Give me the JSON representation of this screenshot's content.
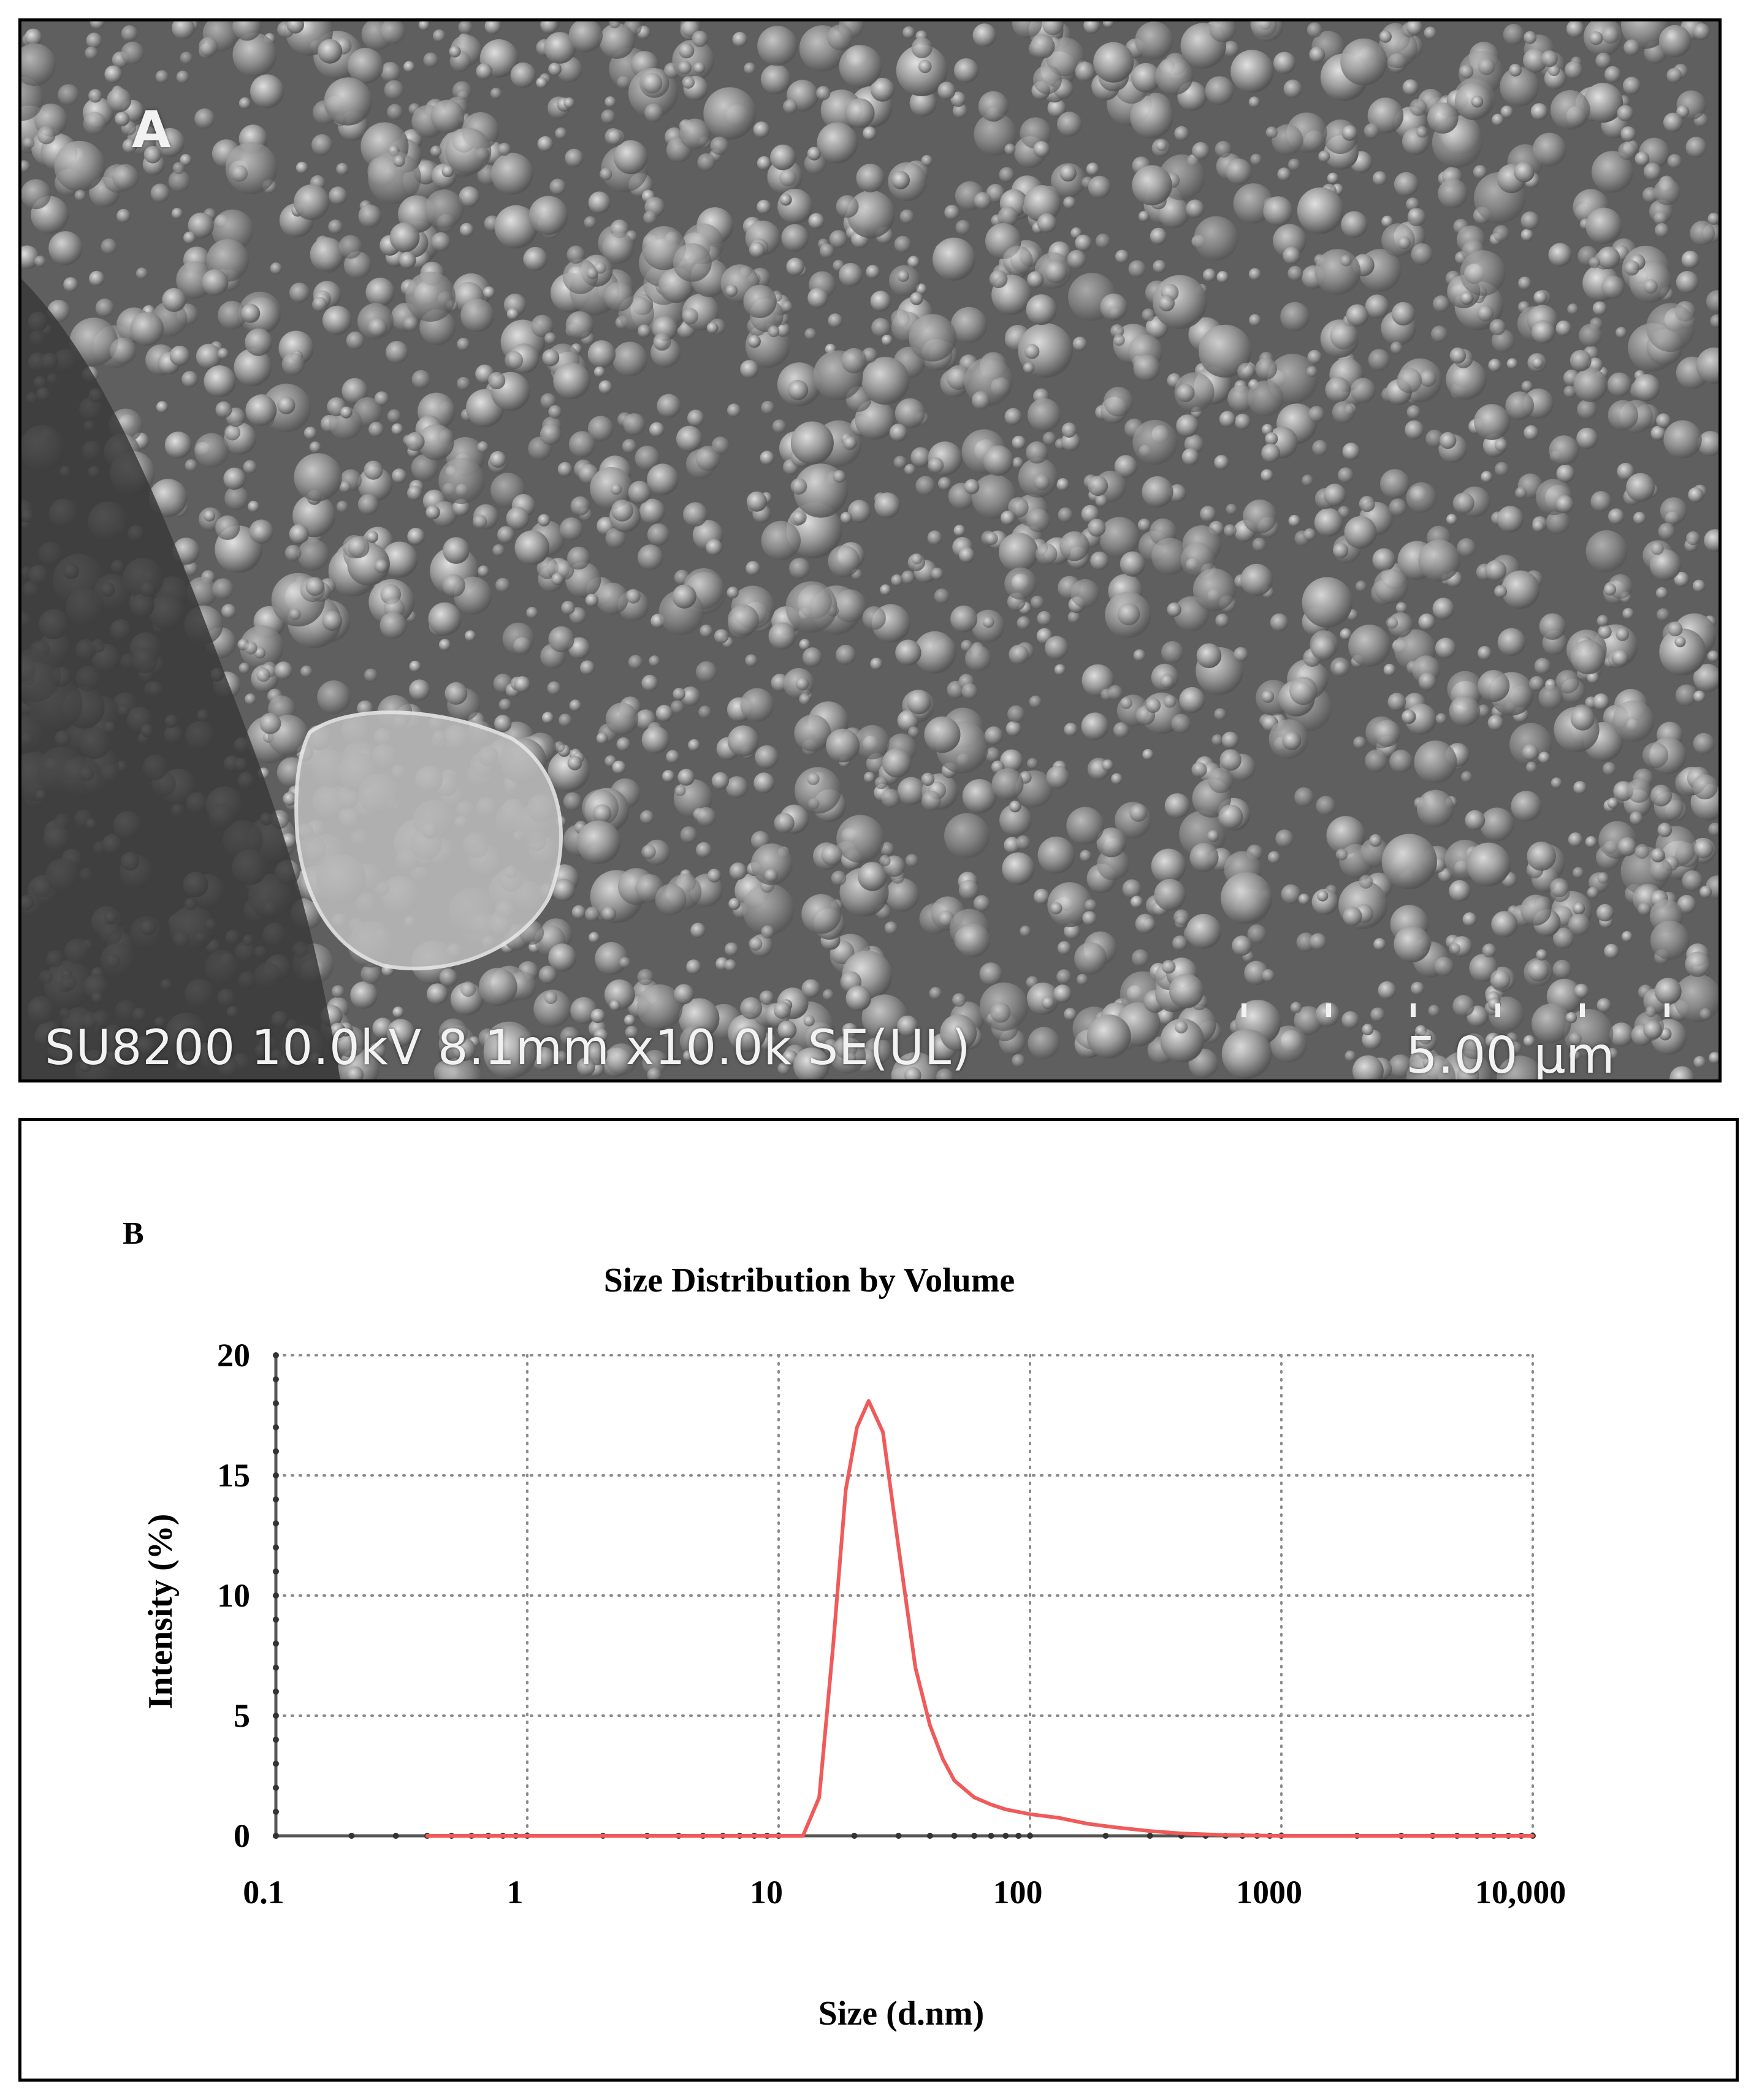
{
  "panel_a": {
    "label": "A",
    "info_bar": "SU8200 10.0kV 8.1mm x10.0k SE(UL)",
    "scale_bar": "5.00 µm"
  },
  "chart_data": {
    "panel_label": "B",
    "type": "line",
    "title": "Size Distribution by Volume",
    "xlabel": "Size (d.nm)",
    "ylabel": "Intensity (%)",
    "x_scale": "log",
    "xlim": [
      0.1,
      10000
    ],
    "ylim": [
      0,
      20
    ],
    "x_tick_labels": [
      "0.1",
      "1",
      "10",
      "100",
      "1000",
      "10,000"
    ],
    "y_tick_labels": [
      "0",
      "5",
      "10",
      "15",
      "20"
    ],
    "grid": true,
    "line_color": "#f05a5a",
    "series": [
      {
        "x": [
          0.4,
          1,
          5,
          10,
          12.5,
          14.5,
          16.5,
          18.5,
          20.5,
          22.8,
          26,
          30,
          35,
          40,
          45,
          50,
          60,
          70,
          80,
          100,
          130,
          170,
          220,
          300,
          400,
          600,
          1000,
          3000,
          10000
        ],
        "y": [
          0,
          0,
          0,
          0,
          0,
          1.6,
          8.0,
          14.4,
          17.0,
          18.1,
          16.8,
          12.0,
          7.0,
          4.6,
          3.2,
          2.3,
          1.6,
          1.3,
          1.1,
          0.9,
          0.75,
          0.5,
          0.35,
          0.2,
          0.1,
          0.03,
          0,
          0,
          0
        ]
      }
    ]
  }
}
